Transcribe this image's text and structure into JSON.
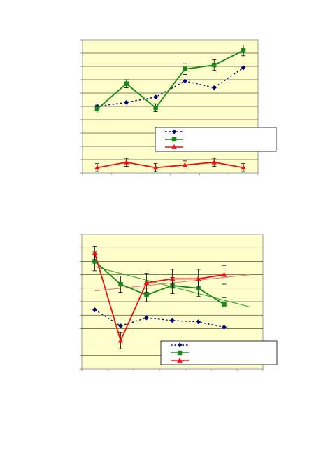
{
  "colors": {
    "page_bg": "#ffffff",
    "plot_bg": "#ffffcc",
    "grid": "#000000",
    "axis": "#808080",
    "blue": "#000080",
    "green": "#1a8a1a",
    "red": "#ee1111",
    "trend_green": "#33aa33",
    "trend_red": "#ee7777"
  },
  "chart_data": [
    {
      "type": "line",
      "title": "",
      "xlabel": "",
      "ylabel": "",
      "x": [
        1,
        2,
        3,
        4,
        5,
        6
      ],
      "xlim": [
        0.5,
        6.5
      ],
      "ylim": [
        0,
        10
      ],
      "y_gridlines": [
        1,
        2,
        3,
        4,
        5,
        6,
        7,
        8,
        9
      ],
      "grid": true,
      "legend": {
        "placement": "bottom-right",
        "entries": [
          "",
          "",
          ""
        ]
      },
      "series": [
        {
          "color": "blue",
          "marker": "diamond",
          "line": "dotted",
          "values": [
            5.0,
            5.3,
            5.7,
            6.9,
            6.4,
            7.9
          ],
          "errors": null
        },
        {
          "color": "green",
          "marker": "square",
          "line": "solid",
          "values": [
            4.8,
            6.7,
            4.9,
            7.8,
            8.1,
            9.2
          ],
          "errors": [
            0.3,
            0.3,
            0.3,
            0.4,
            0.4,
            0.4
          ]
        },
        {
          "color": "red",
          "marker": "triangle",
          "line": "solid",
          "values": [
            0.4,
            0.8,
            0.4,
            0.6,
            0.8,
            0.4
          ],
          "errors": [
            0.3,
            0.3,
            0.3,
            0.3,
            0.3,
            0.3
          ]
        }
      ]
    },
    {
      "type": "line",
      "title": "",
      "xlabel": "",
      "ylabel": "",
      "x": [
        1,
        2,
        3,
        4,
        5,
        6
      ],
      "xlim": [
        0.5,
        7.5
      ],
      "ylim": [
        0,
        10
      ],
      "y_gridlines": [
        1,
        2,
        3,
        4,
        5,
        6,
        7,
        8,
        9
      ],
      "grid": true,
      "legend": {
        "placement": "bottom-right",
        "entries": [
          "",
          "",
          ""
        ]
      },
      "series": [
        {
          "color": "blue",
          "marker": "diamond",
          "line": "dotted",
          "values": [
            4.4,
            3.2,
            3.8,
            3.6,
            3.5,
            3.1
          ],
          "errors": null
        },
        {
          "color": "green",
          "marker": "square",
          "line": "solid",
          "values": [
            8.0,
            6.3,
            5.5,
            6.2,
            6.0,
            4.8
          ],
          "errors": [
            0.7,
            0.6,
            0.5,
            0.6,
            0.6,
            0.5
          ]
        },
        {
          "color": "red",
          "marker": "triangle",
          "line": "solid",
          "values": [
            8.6,
            2.1,
            6.4,
            6.7,
            6.7,
            7.0
          ],
          "errors": [
            0.5,
            0.6,
            0.7,
            0.7,
            0.7,
            0.7
          ]
        }
      ],
      "trendlines": [
        {
          "color": "trend_green",
          "start": 7.6,
          "end": 4.6
        },
        {
          "color": "trend_red",
          "start": 5.8,
          "end": 7.0
        }
      ]
    }
  ]
}
